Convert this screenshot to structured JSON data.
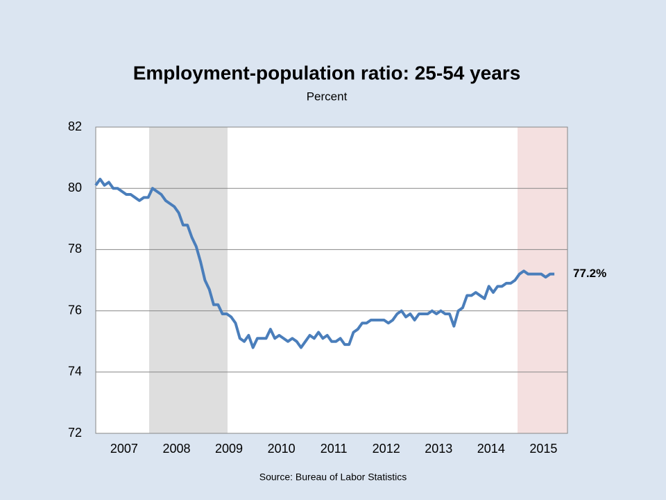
{
  "chart_data": {
    "type": "line",
    "title": "Employment-population ratio: 25-54 years",
    "subtitle": "Percent",
    "source": "Source: Bureau of Labor Statistics",
    "categories": [
      null,
      null,
      null,
      null,
      null,
      null,
      "2007",
      null,
      null,
      null,
      null,
      null,
      null,
      null,
      null,
      null,
      null,
      null,
      "2008",
      null,
      null,
      null,
      null,
      null,
      null,
      null,
      null,
      null,
      null,
      null,
      "2009",
      null,
      null,
      null,
      null,
      null,
      null,
      null,
      null,
      null,
      null,
      null,
      "2010",
      null,
      null,
      null,
      null,
      null,
      null,
      null,
      null,
      null,
      null,
      null,
      "2011",
      null,
      null,
      null,
      null,
      null,
      null,
      null,
      null,
      null,
      null,
      null,
      "2012",
      null,
      null,
      null,
      null,
      null,
      null,
      null,
      null,
      null,
      null,
      null,
      "2013",
      null,
      null,
      null,
      null,
      null,
      null,
      null,
      null,
      null,
      null,
      null,
      "2014",
      null,
      null,
      null,
      null,
      null,
      null,
      null,
      null,
      null,
      null,
      null,
      "2015",
      null,
      null,
      null,
      null,
      null
    ],
    "series": [
      {
        "name": "Employment-population ratio",
        "color": "#4a7ebb",
        "values": [
          80.1,
          80.3,
          80.1,
          80.2,
          80.0,
          80.0,
          79.9,
          79.8,
          79.8,
          79.7,
          79.6,
          79.7,
          79.7,
          80.0,
          79.9,
          79.8,
          79.6,
          79.5,
          79.4,
          79.2,
          78.8,
          78.8,
          78.4,
          78.1,
          77.6,
          77.0,
          76.7,
          76.2,
          76.2,
          75.9,
          75.9,
          75.8,
          75.6,
          75.1,
          75.0,
          75.2,
          74.8,
          75.1,
          75.1,
          75.1,
          75.4,
          75.1,
          75.2,
          75.1,
          75.0,
          75.1,
          75.0,
          74.8,
          75.0,
          75.2,
          75.1,
          75.3,
          75.1,
          75.2,
          75.0,
          75.0,
          75.1,
          74.9,
          74.9,
          75.3,
          75.4,
          75.6,
          75.6,
          75.7,
          75.7,
          75.7,
          75.7,
          75.6,
          75.7,
          75.9,
          76.0,
          75.8,
          75.9,
          75.7,
          75.9,
          75.9,
          75.9,
          76.0,
          75.9,
          76.0,
          75.9,
          75.9,
          75.5,
          76.0,
          76.1,
          76.5,
          76.5,
          76.6,
          76.5,
          76.4,
          76.8,
          76.6,
          76.8,
          76.8,
          76.9,
          76.9,
          77.0,
          77.2,
          77.3,
          77.2,
          77.2,
          77.2,
          77.2,
          77.1,
          77.2,
          77.2,
          null,
          null
        ],
        "value_labels": [
          null,
          null,
          null,
          null,
          null,
          null,
          null,
          null,
          null,
          null,
          null,
          null,
          null,
          null,
          null,
          null,
          null,
          null,
          null,
          null,
          null,
          null,
          null,
          null,
          null,
          null,
          null,
          null,
          null,
          null,
          null,
          null,
          null,
          null,
          null,
          null,
          null,
          null,
          null,
          null,
          null,
          null,
          null,
          null,
          null,
          null,
          null,
          null,
          null,
          null,
          null,
          null,
          null,
          null,
          null,
          null,
          null,
          null,
          null,
          null,
          null,
          null,
          null,
          null,
          null,
          null,
          null,
          null,
          null,
          null,
          null,
          null,
          null,
          null,
          null,
          null,
          null,
          null,
          null,
          null,
          null,
          null,
          null,
          null,
          null,
          null,
          null,
          null,
          null,
          null,
          null,
          null,
          null,
          null,
          null,
          null,
          null,
          null,
          null,
          null,
          null,
          null,
          null,
          null,
          null,
          "77.2%",
          null,
          null
        ]
      }
    ],
    "ylim": [
      72,
      82
    ],
    "yticks": [
      72,
      74,
      76,
      78,
      80,
      82
    ],
    "grid": true
  }
}
